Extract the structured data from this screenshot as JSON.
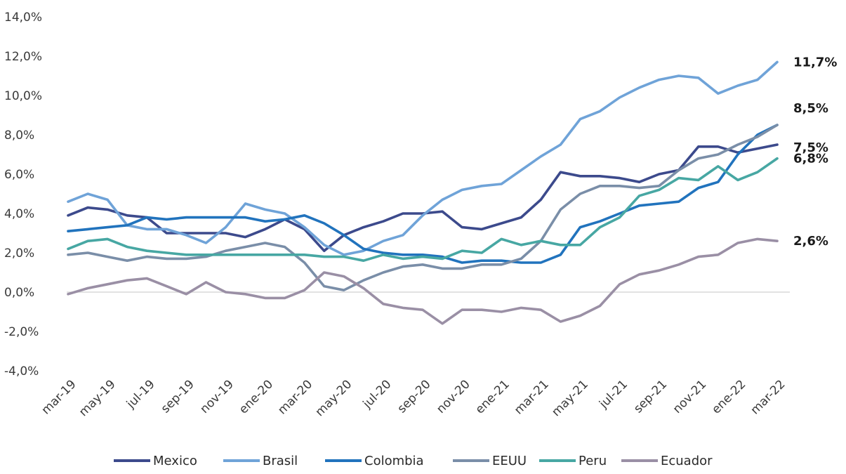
{
  "chart_data": {
    "type": "line",
    "title": "",
    "xlabel": "",
    "ylabel": "",
    "ylim": [
      -4,
      14
    ],
    "y_ticks": [
      "-4,0%",
      "-2,0%",
      "0,0%",
      "2,0%",
      "4,0%",
      "6,0%",
      "8,0%",
      "10,0%",
      "12,0%",
      "14,0%"
    ],
    "x": [
      "mar-19",
      "abr-19",
      "may-19",
      "jun-19",
      "jul-19",
      "ago-19",
      "sep-19",
      "oct-19",
      "nov-19",
      "dic-19",
      "ene-20",
      "feb-20",
      "mar-20",
      "abr-20",
      "may-20",
      "jun-20",
      "jul-20",
      "ago-20",
      "sep-20",
      "oct-20",
      "nov-20",
      "dic-20",
      "ene-21",
      "feb-21",
      "mar-21",
      "abr-21",
      "may-21",
      "jun-21",
      "jul-21",
      "ago-21",
      "sep-21",
      "oct-21",
      "nov-21",
      "dic-21",
      "ene-22",
      "feb-22",
      "mar-22"
    ],
    "x_tick_labels": [
      "mar-19",
      "may-19",
      "jul-19",
      "sep-19",
      "nov-19",
      "ene-20",
      "mar-20",
      "may-20",
      "jul-20",
      "sep-20",
      "nov-20",
      "ene-21",
      "mar-21",
      "may-21",
      "jul-21",
      "sep-21",
      "nov-21",
      "ene-22",
      "mar-22"
    ],
    "grid": false,
    "legend_position": "bottom",
    "series": [
      {
        "name": "Mexico",
        "color": "#3c4a8c",
        "values": [
          3.9,
          4.3,
          4.2,
          3.9,
          3.8,
          3.0,
          3.0,
          3.0,
          3.0,
          2.8,
          3.2,
          3.7,
          3.2,
          2.1,
          2.9,
          3.3,
          3.6,
          4.0,
          4.0,
          4.1,
          3.3,
          3.2,
          3.5,
          3.8,
          4.7,
          6.1,
          5.9,
          5.9,
          5.8,
          5.6,
          6.0,
          6.2,
          7.4,
          7.4,
          7.1,
          7.3,
          7.5
        ]
      },
      {
        "name": "Brasil",
        "color": "#6fa3d8",
        "values": [
          4.6,
          5.0,
          4.7,
          3.4,
          3.2,
          3.2,
          2.9,
          2.5,
          3.3,
          4.5,
          4.2,
          4.0,
          3.3,
          2.4,
          1.9,
          2.1,
          2.6,
          2.9,
          3.9,
          4.7,
          5.2,
          5.4,
          5.5,
          6.2,
          6.9,
          7.5,
          8.8,
          9.2,
          9.9,
          10.4,
          10.8,
          11.0,
          10.9,
          10.1,
          10.5,
          10.8,
          11.7
        ]
      },
      {
        "name": "Colombia",
        "color": "#2173bd",
        "values": [
          3.1,
          3.2,
          3.3,
          3.4,
          3.8,
          3.7,
          3.8,
          3.8,
          3.8,
          3.8,
          3.6,
          3.7,
          3.9,
          3.5,
          2.9,
          2.2,
          2.0,
          1.9,
          1.9,
          1.8,
          1.5,
          1.6,
          1.6,
          1.5,
          1.5,
          1.9,
          3.3,
          3.6,
          4.0,
          4.4,
          4.5,
          4.6,
          5.3,
          5.6,
          7.0,
          8.0,
          8.5
        ]
      },
      {
        "name": "EEUU",
        "color": "#7a8ea8",
        "values": [
          1.9,
          2.0,
          1.8,
          1.6,
          1.8,
          1.7,
          1.7,
          1.8,
          2.1,
          2.3,
          2.5,
          2.3,
          1.5,
          0.3,
          0.1,
          0.6,
          1.0,
          1.3,
          1.4,
          1.2,
          1.2,
          1.4,
          1.4,
          1.7,
          2.6,
          4.2,
          5.0,
          5.4,
          5.4,
          5.3,
          5.4,
          6.2,
          6.8,
          7.0,
          7.5,
          7.9,
          8.5
        ]
      },
      {
        "name": "Peru",
        "color": "#47a7a3",
        "values": [
          2.2,
          2.6,
          2.7,
          2.3,
          2.1,
          2.0,
          1.9,
          1.9,
          1.9,
          1.9,
          1.9,
          1.9,
          1.9,
          1.8,
          1.8,
          1.6,
          1.9,
          1.7,
          1.8,
          1.7,
          2.1,
          2.0,
          2.7,
          2.4,
          2.6,
          2.4,
          2.4,
          3.3,
          3.8,
          4.9,
          5.2,
          5.8,
          5.7,
          6.4,
          5.7,
          6.1,
          6.8
        ]
      },
      {
        "name": "Ecuador",
        "color": "#9a8fa5",
        "values": [
          -0.1,
          0.2,
          0.4,
          0.6,
          0.7,
          0.3,
          -0.1,
          0.5,
          0.0,
          -0.1,
          -0.3,
          -0.3,
          0.1,
          1.0,
          0.8,
          0.2,
          -0.6,
          -0.8,
          -0.9,
          -1.6,
          -0.9,
          -0.9,
          -1.0,
          -0.8,
          -0.9,
          -1.5,
          -1.2,
          -0.7,
          0.4,
          0.9,
          1.1,
          1.4,
          1.8,
          1.9,
          2.5,
          2.7,
          2.6
        ]
      }
    ],
    "end_labels": [
      "11,7%",
      "8,5%",
      "7,5%",
      "6,8%",
      "2,6%"
    ]
  }
}
